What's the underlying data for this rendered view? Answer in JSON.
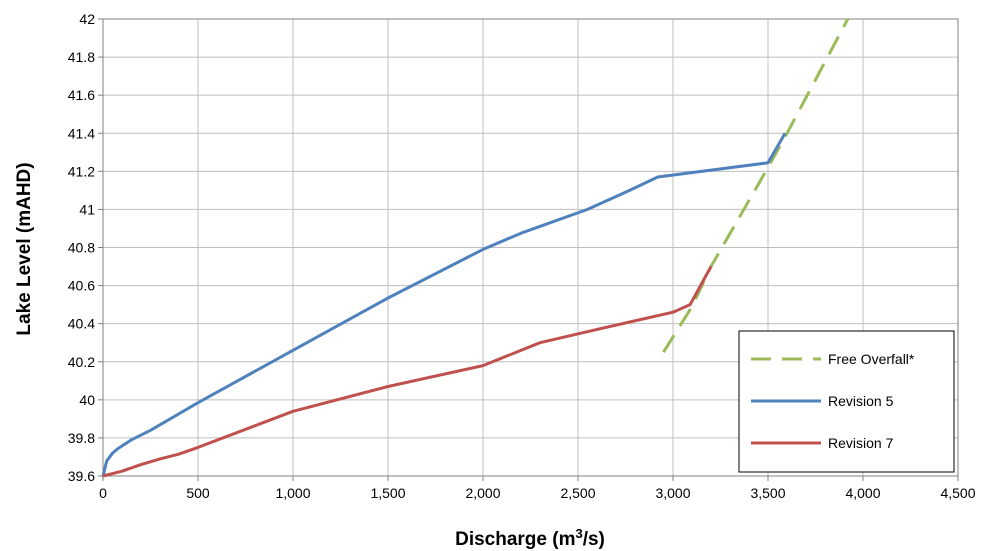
{
  "chart_data": {
    "type": "line",
    "title": "",
    "xlabel": "Discharge (m",
    "xlabel_sup": "3",
    "xlabel_tail": "/s)",
    "ylabel": "Lake Level (mAHD)",
    "xlim": [
      0,
      4500
    ],
    "ylim": [
      39.6,
      42
    ],
    "x_ticks": [
      0,
      500,
      1000,
      1500,
      2000,
      2500,
      3000,
      3500,
      4000,
      4500
    ],
    "x_tick_labels": [
      "0",
      "500",
      "1,000",
      "1,500",
      "2,000",
      "2,500",
      "3,000",
      "3,500",
      "4,000",
      "4,500"
    ],
    "y_ticks": [
      39.6,
      39.8,
      40,
      40.2,
      40.4,
      40.6,
      40.8,
      41,
      41.2,
      41.4,
      41.6,
      41.8,
      42
    ],
    "y_tick_labels": [
      "39.6",
      "39.8",
      "40",
      "40.2",
      "40.4",
      "40.6",
      "40.8",
      "41",
      "41.2",
      "41.4",
      "41.6",
      "41.8",
      "42"
    ],
    "grid": true,
    "legend_position": "bottom-right",
    "series": [
      {
        "name": "Free Overfall*",
        "color": "#9bbb59",
        "dashed": true,
        "points": [
          [
            2950,
            40.25
          ],
          [
            3100,
            40.49
          ],
          [
            3200,
            40.7
          ],
          [
            3500,
            41.22
          ],
          [
            3600,
            41.4
          ],
          [
            3920,
            42.0
          ]
        ]
      },
      {
        "name": "Revision 5",
        "color": "#4f81bd",
        "dashed": false,
        "points": [
          [
            0,
            39.6
          ],
          [
            20,
            39.68
          ],
          [
            50,
            39.72
          ],
          [
            80,
            39.745
          ],
          [
            150,
            39.79
          ],
          [
            250,
            39.84
          ],
          [
            500,
            39.985
          ],
          [
            1000,
            40.26
          ],
          [
            1500,
            40.535
          ],
          [
            2000,
            40.79
          ],
          [
            2200,
            40.875
          ],
          [
            2550,
            41.0
          ],
          [
            2750,
            41.09
          ],
          [
            2920,
            41.17
          ],
          [
            3500,
            41.245
          ],
          [
            3590,
            41.4
          ]
        ]
      },
      {
        "name": "Revision 7",
        "color": "#c0504d",
        "dashed": false,
        "points": [
          [
            0,
            39.6
          ],
          [
            100,
            39.625
          ],
          [
            200,
            39.66
          ],
          [
            300,
            39.69
          ],
          [
            400,
            39.715
          ],
          [
            500,
            39.75
          ],
          [
            1000,
            39.94
          ],
          [
            1500,
            40.07
          ],
          [
            2000,
            40.18
          ],
          [
            2300,
            40.3
          ],
          [
            2600,
            40.37
          ],
          [
            3000,
            40.46
          ],
          [
            3090,
            40.5
          ],
          [
            3200,
            40.7
          ]
        ]
      }
    ]
  }
}
